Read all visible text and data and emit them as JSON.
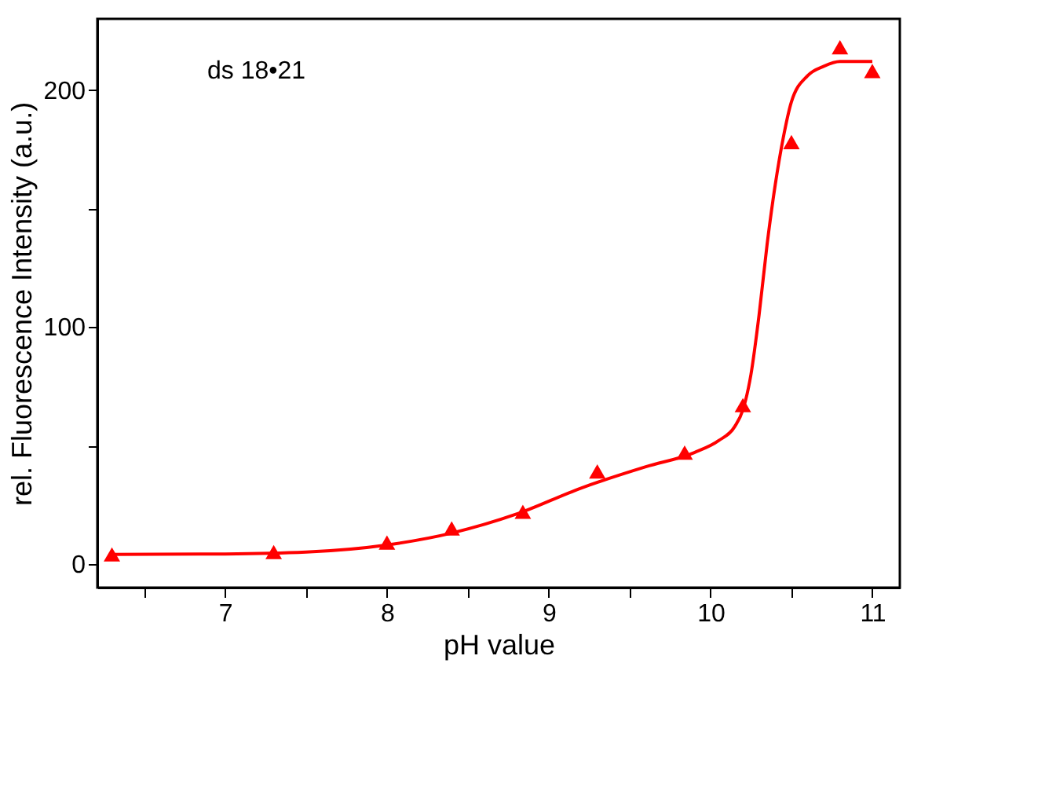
{
  "chart_data": {
    "type": "scatter",
    "xlabel": "pH value",
    "ylabel": "rel. Fluorescence Intensity (a.u.)",
    "annotations": [
      "ds 18•21"
    ],
    "xlim": [
      6.21,
      11.17
    ],
    "ylim": [
      -10,
      230
    ],
    "xticks": [
      {
        "value": 6.5,
        "label": null
      },
      7,
      {
        "value": 7.5,
        "label": null
      },
      8,
      {
        "value": 8.5,
        "label": null
      },
      9,
      {
        "value": 9.5,
        "label": null
      },
      10,
      {
        "value": 10.5,
        "label": null
      },
      11
    ],
    "yticks": [
      0,
      {
        "value": 50,
        "label": null
      },
      100,
      {
        "value": 150,
        "label": null
      },
      200
    ],
    "marker": "triangle",
    "grid": false,
    "series": [
      {
        "color": "#ff0000",
        "x": [
          6.3,
          7.3,
          8.0,
          8.4,
          8.84,
          9.3,
          9.84,
          10.2,
          10.5,
          10.8,
          11.0
        ],
        "values": [
          4,
          5,
          9,
          15,
          22,
          39,
          47,
          67,
          178,
          218,
          208
        ]
      },
      {
        "type": "line",
        "color": "#ff0000",
        "marker": "none",
        "line_style": "solid",
        "x": [
          6.3,
          7.0,
          7.5,
          8.0,
          8.4,
          8.8,
          9.2,
          9.6,
          9.9,
          10.05,
          10.15,
          10.2,
          10.25,
          10.3,
          10.35,
          10.4,
          10.45,
          10.5,
          10.6,
          10.7,
          10.8,
          11.0
        ],
        "values": [
          4,
          4.2,
          5,
          8,
          13,
          21,
          32,
          41,
          47,
          52,
          58,
          65,
          80,
          105,
          135,
          160,
          180,
          195,
          206,
          210,
          212,
          212
        ]
      }
    ]
  }
}
